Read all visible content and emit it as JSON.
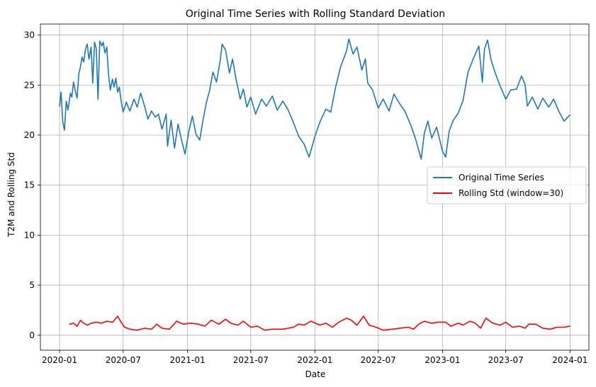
{
  "chart_data": {
    "type": "line",
    "title": "Original Time Series with Rolling Standard Deviation",
    "xlabel": "Date",
    "ylabel": "T2M and Rolling Std",
    "xlim": [
      "2019-11-07",
      "2024-02-24"
    ],
    "ylim": [
      -1.5,
      31.1
    ],
    "x_ticks": [
      "2020-01",
      "2020-07",
      "2021-01",
      "2021-07",
      "2022-01",
      "2022-07",
      "2023-01",
      "2023-07",
      "2024-01"
    ],
    "y_ticks": [
      0,
      5,
      10,
      15,
      20,
      25,
      30
    ],
    "grid": true,
    "legend_position": "center-right",
    "colors": {
      "original": "#1f77b4",
      "rolling": "#ff0000"
    },
    "series": [
      {
        "name": "Original Time Series",
        "color": "#1f77b4",
        "points": [
          [
            "2020-01-01",
            22.9
          ],
          [
            "2020-01-05",
            24.3
          ],
          [
            "2020-01-10",
            21.3
          ],
          [
            "2020-01-15",
            20.5
          ],
          [
            "2020-01-20",
            23.4
          ],
          [
            "2020-01-25",
            22.5
          ],
          [
            "2020-02-01",
            24.2
          ],
          [
            "2020-02-05",
            23.8
          ],
          [
            "2020-02-10",
            25.3
          ],
          [
            "2020-02-15",
            24.4
          ],
          [
            "2020-02-20",
            23.7
          ],
          [
            "2020-02-25",
            26.1
          ],
          [
            "2020-03-01",
            26.9
          ],
          [
            "2020-03-05",
            27.8
          ],
          [
            "2020-03-10",
            27.3
          ],
          [
            "2020-03-15",
            28.6
          ],
          [
            "2020-03-20",
            29.1
          ],
          [
            "2020-03-25",
            27.6
          ],
          [
            "2020-03-31",
            28.8
          ],
          [
            "2020-04-05",
            25.2
          ],
          [
            "2020-04-10",
            29.3
          ],
          [
            "2020-04-15",
            28.6
          ],
          [
            "2020-04-20",
            23.6
          ],
          [
            "2020-04-25",
            29.4
          ],
          [
            "2020-05-01",
            28.9
          ],
          [
            "2020-05-05",
            29.3
          ],
          [
            "2020-05-10",
            28.2
          ],
          [
            "2020-05-15",
            28.8
          ],
          [
            "2020-05-20",
            26.1
          ],
          [
            "2020-05-25",
            24.5
          ],
          [
            "2020-05-31",
            25.6
          ],
          [
            "2020-06-05",
            24.8
          ],
          [
            "2020-06-10",
            25.7
          ],
          [
            "2020-06-15",
            24.3
          ],
          [
            "2020-06-20",
            24.8
          ],
          [
            "2020-06-25",
            23.4
          ],
          [
            "2020-07-01",
            22.3
          ],
          [
            "2020-07-10",
            23.3
          ],
          [
            "2020-07-20",
            22.4
          ],
          [
            "2020-08-01",
            23.6
          ],
          [
            "2020-08-10",
            22.8
          ],
          [
            "2020-08-20",
            24.2
          ],
          [
            "2020-09-01",
            22.8
          ],
          [
            "2020-09-10",
            21.6
          ],
          [
            "2020-09-20",
            22.4
          ],
          [
            "2020-10-01",
            21.8
          ],
          [
            "2020-10-10",
            22.1
          ],
          [
            "2020-10-20",
            20.6
          ],
          [
            "2020-11-01",
            22.1
          ],
          [
            "2020-11-05",
            18.9
          ],
          [
            "2020-11-15",
            21.5
          ],
          [
            "2020-11-25",
            18.7
          ],
          [
            "2020-12-05",
            21.1
          ],
          [
            "2020-12-15",
            19.5
          ],
          [
            "2020-12-25",
            18.1
          ],
          [
            "2021-01-05",
            20.4
          ],
          [
            "2021-01-15",
            21.9
          ],
          [
            "2021-01-25",
            20.1
          ],
          [
            "2021-02-05",
            19.5
          ],
          [
            "2021-02-15",
            21.6
          ],
          [
            "2021-02-25",
            23.4
          ],
          [
            "2021-03-05",
            24.4
          ],
          [
            "2021-03-15",
            26.3
          ],
          [
            "2021-03-25",
            25.3
          ],
          [
            "2021-04-05",
            27.5
          ],
          [
            "2021-04-10",
            29.1
          ],
          [
            "2021-04-20",
            28.5
          ],
          [
            "2021-05-01",
            26.2
          ],
          [
            "2021-05-10",
            27.6
          ],
          [
            "2021-05-20",
            25.6
          ],
          [
            "2021-06-01",
            23.6
          ],
          [
            "2021-06-10",
            24.6
          ],
          [
            "2021-06-20",
            22.8
          ],
          [
            "2021-07-01",
            23.8
          ],
          [
            "2021-07-15",
            22.1
          ],
          [
            "2021-08-01",
            23.6
          ],
          [
            "2021-08-15",
            22.9
          ],
          [
            "2021-09-01",
            23.9
          ],
          [
            "2021-09-15",
            22.5
          ],
          [
            "2021-10-01",
            23.4
          ],
          [
            "2021-10-15",
            22.6
          ],
          [
            "2021-11-01",
            21.2
          ],
          [
            "2021-11-15",
            19.9
          ],
          [
            "2021-12-01",
            19.1
          ],
          [
            "2021-12-15",
            17.8
          ],
          [
            "2022-01-01",
            19.9
          ],
          [
            "2022-01-15",
            21.3
          ],
          [
            "2022-02-01",
            22.6
          ],
          [
            "2022-02-15",
            22.3
          ],
          [
            "2022-03-01",
            24.8
          ],
          [
            "2022-03-15",
            26.8
          ],
          [
            "2022-04-01",
            28.4
          ],
          [
            "2022-04-08",
            29.6
          ],
          [
            "2022-04-20",
            28.1
          ],
          [
            "2022-05-01",
            28.8
          ],
          [
            "2022-05-15",
            26.5
          ],
          [
            "2022-05-25",
            27.6
          ],
          [
            "2022-06-01",
            25.2
          ],
          [
            "2022-06-15",
            24.5
          ],
          [
            "2022-07-01",
            22.7
          ],
          [
            "2022-07-15",
            23.6
          ],
          [
            "2022-08-01",
            22.4
          ],
          [
            "2022-08-15",
            24.1
          ],
          [
            "2022-09-01",
            23.1
          ],
          [
            "2022-09-15",
            22.4
          ],
          [
            "2022-10-01",
            21.1
          ],
          [
            "2022-10-15",
            19.7
          ],
          [
            "2022-11-01",
            17.6
          ],
          [
            "2022-11-10",
            20.2
          ],
          [
            "2022-11-20",
            21.4
          ],
          [
            "2022-12-01",
            19.7
          ],
          [
            "2022-12-15",
            20.8
          ],
          [
            "2023-01-01",
            18.4
          ],
          [
            "2023-01-10",
            17.8
          ],
          [
            "2023-01-20",
            20.4
          ],
          [
            "2023-02-01",
            21.5
          ],
          [
            "2023-02-15",
            22.2
          ],
          [
            "2023-03-01",
            23.5
          ],
          [
            "2023-03-15",
            26.3
          ],
          [
            "2023-04-01",
            27.8
          ],
          [
            "2023-04-15",
            28.9
          ],
          [
            "2023-04-25",
            25.3
          ],
          [
            "2023-05-01",
            28.6
          ],
          [
            "2023-05-10",
            29.5
          ],
          [
            "2023-05-20",
            27.5
          ],
          [
            "2023-06-01",
            26.2
          ],
          [
            "2023-06-15",
            24.9
          ],
          [
            "2023-07-01",
            23.6
          ],
          [
            "2023-07-15",
            24.5
          ],
          [
            "2023-08-01",
            24.6
          ],
          [
            "2023-08-15",
            25.9
          ],
          [
            "2023-08-25",
            25.1
          ],
          [
            "2023-09-01",
            22.9
          ],
          [
            "2023-09-15",
            23.8
          ],
          [
            "2023-10-01",
            22.6
          ],
          [
            "2023-10-15",
            23.7
          ],
          [
            "2023-11-01",
            22.8
          ],
          [
            "2023-11-15",
            23.6
          ],
          [
            "2023-12-01",
            22.3
          ],
          [
            "2023-12-15",
            21.4
          ],
          [
            "2023-12-31",
            22.0
          ]
        ]
      },
      {
        "name": "Rolling Std (window=30)",
        "color": "#ff0000",
        "points": [
          [
            "2020-01-30",
            1.1
          ],
          [
            "2020-02-10",
            1.2
          ],
          [
            "2020-02-20",
            0.9
          ],
          [
            "2020-03-01",
            1.5
          ],
          [
            "2020-03-10",
            1.2
          ],
          [
            "2020-03-20",
            1.0
          ],
          [
            "2020-04-01",
            1.2
          ],
          [
            "2020-04-15",
            1.3
          ],
          [
            "2020-05-01",
            1.2
          ],
          [
            "2020-05-15",
            1.4
          ],
          [
            "2020-06-01",
            1.3
          ],
          [
            "2020-06-15",
            1.9
          ],
          [
            "2020-06-25",
            1.3
          ],
          [
            "2020-07-05",
            0.8
          ],
          [
            "2020-07-20",
            0.6
          ],
          [
            "2020-08-10",
            0.5
          ],
          [
            "2020-09-01",
            0.7
          ],
          [
            "2020-09-20",
            0.6
          ],
          [
            "2020-10-05",
            1.1
          ],
          [
            "2020-10-20",
            0.7
          ],
          [
            "2020-11-10",
            0.6
          ],
          [
            "2020-12-01",
            1.4
          ],
          [
            "2020-12-20",
            1.1
          ],
          [
            "2021-01-10",
            1.2
          ],
          [
            "2021-02-01",
            1.1
          ],
          [
            "2021-02-20",
            0.9
          ],
          [
            "2021-03-10",
            1.5
          ],
          [
            "2021-04-01",
            1.1
          ],
          [
            "2021-04-20",
            1.6
          ],
          [
            "2021-05-05",
            1.2
          ],
          [
            "2021-05-25",
            1.0
          ],
          [
            "2021-06-10",
            1.4
          ],
          [
            "2021-07-01",
            0.8
          ],
          [
            "2021-07-20",
            0.9
          ],
          [
            "2021-08-10",
            0.5
          ],
          [
            "2021-09-01",
            0.6
          ],
          [
            "2021-10-01",
            0.6
          ],
          [
            "2021-11-01",
            0.8
          ],
          [
            "2021-11-15",
            1.1
          ],
          [
            "2021-12-01",
            1.0
          ],
          [
            "2021-12-20",
            1.4
          ],
          [
            "2022-01-15",
            1.0
          ],
          [
            "2022-02-01",
            1.2
          ],
          [
            "2022-02-20",
            0.8
          ],
          [
            "2022-03-10",
            1.3
          ],
          [
            "2022-04-01",
            1.7
          ],
          [
            "2022-04-15",
            1.5
          ],
          [
            "2022-05-01",
            1.0
          ],
          [
            "2022-05-20",
            1.9
          ],
          [
            "2022-06-05",
            1.0
          ],
          [
            "2022-06-25",
            0.8
          ],
          [
            "2022-07-15",
            0.5
          ],
          [
            "2022-08-10",
            0.6
          ],
          [
            "2022-09-01",
            0.7
          ],
          [
            "2022-09-25",
            0.8
          ],
          [
            "2022-10-10",
            0.6
          ],
          [
            "2022-10-25",
            1.1
          ],
          [
            "2022-11-10",
            1.4
          ],
          [
            "2022-12-01",
            1.2
          ],
          [
            "2022-12-20",
            1.3
          ],
          [
            "2023-01-10",
            1.3
          ],
          [
            "2023-01-25",
            0.9
          ],
          [
            "2023-02-15",
            1.2
          ],
          [
            "2023-03-01",
            1.0
          ],
          [
            "2023-03-20",
            1.4
          ],
          [
            "2023-04-05",
            1.2
          ],
          [
            "2023-04-20",
            0.7
          ],
          [
            "2023-05-05",
            1.7
          ],
          [
            "2023-05-25",
            1.2
          ],
          [
            "2023-06-15",
            1.0
          ],
          [
            "2023-07-01",
            1.3
          ],
          [
            "2023-07-20",
            0.8
          ],
          [
            "2023-08-10",
            0.9
          ],
          [
            "2023-08-25",
            0.7
          ],
          [
            "2023-09-05",
            1.1
          ],
          [
            "2023-09-25",
            1.1
          ],
          [
            "2023-10-15",
            0.7
          ],
          [
            "2023-11-05",
            0.6
          ],
          [
            "2023-11-25",
            0.8
          ],
          [
            "2023-12-15",
            0.8
          ],
          [
            "2023-12-31",
            0.9
          ]
        ]
      }
    ]
  }
}
